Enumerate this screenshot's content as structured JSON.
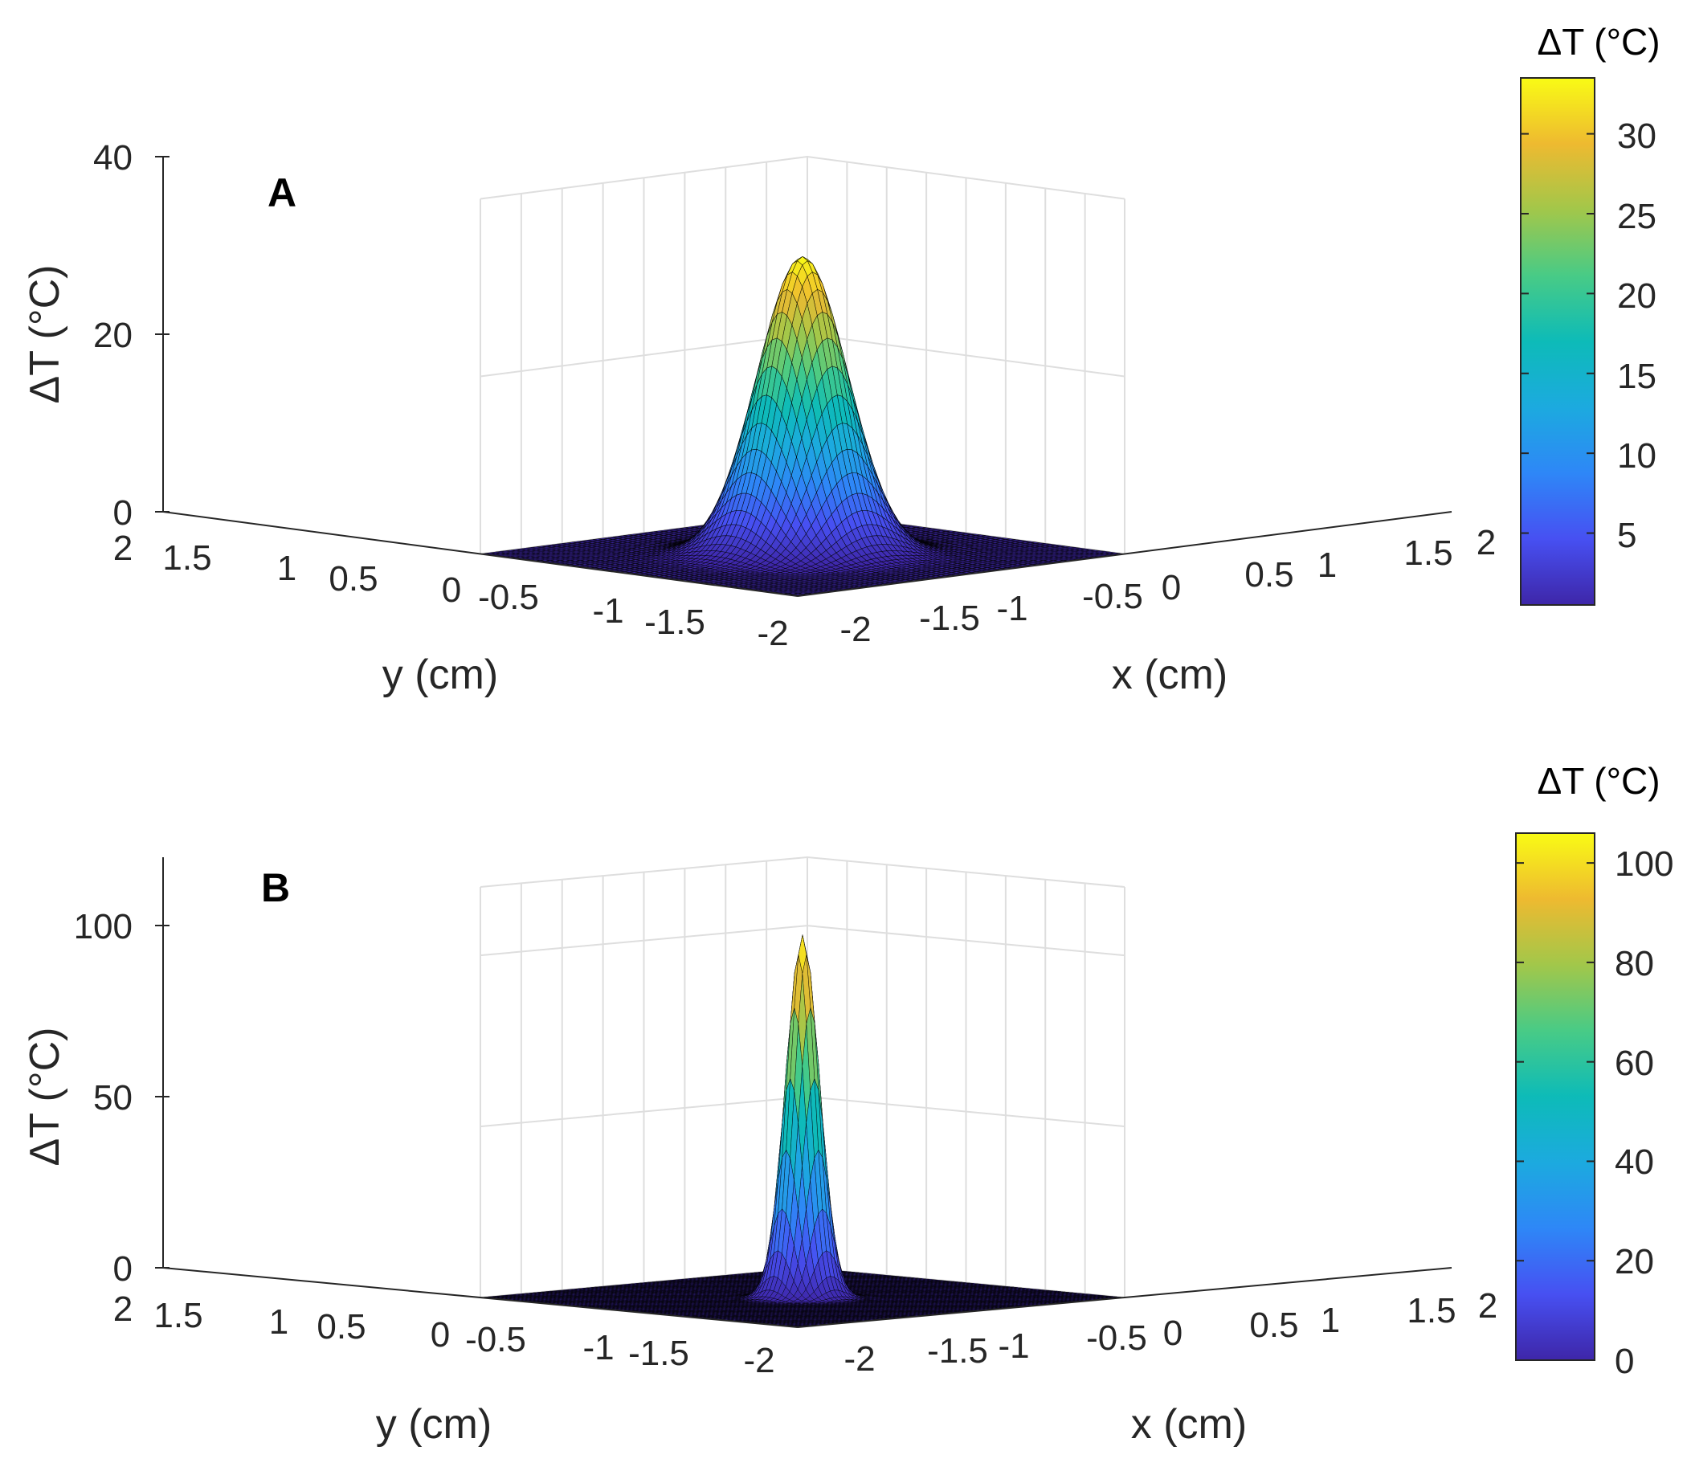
{
  "chart_data": [
    {
      "type": "surface",
      "panel_label": "A",
      "zlabel": "ΔT (°C)",
      "xlabel": "x (cm)",
      "ylabel": "y (cm)",
      "x_range": [
        -2,
        2
      ],
      "y_range": [
        -2,
        2
      ],
      "zlim": [
        0,
        40
      ],
      "z_ticks": [
        "0",
        "20",
        "40"
      ],
      "x_ticks": [
        "-2",
        "-1.5",
        "-1",
        "-0.5",
        "0",
        "0.5",
        "1",
        "1.5",
        "2"
      ],
      "y_ticks": [
        "2",
        "1.5",
        "1",
        "0.5",
        "0",
        "-0.5",
        "-1",
        "-1.5",
        "-2"
      ],
      "peak": 33.5,
      "peak_location": [
        0,
        0
      ],
      "gaussian_sigma_cm": 0.4,
      "grid": true,
      "colormap": "parula",
      "colorbar": {
        "title": "ΔT (°C)",
        "range": [
          0.5,
          33.5
        ],
        "ticks": [
          "5",
          "10",
          "15",
          "20",
          "25",
          "30"
        ],
        "placement": "right"
      }
    },
    {
      "type": "surface",
      "panel_label": "B",
      "zlabel": "ΔT (°C)",
      "xlabel": "x (cm)",
      "ylabel": "y (cm)",
      "x_range": [
        -2,
        2
      ],
      "y_range": [
        -2,
        2
      ],
      "zlim": [
        0,
        120
      ],
      "z_ticks": [
        "0",
        "50",
        "100"
      ],
      "x_ticks": [
        "-2",
        "-1.5",
        "-1",
        "-0.5",
        "0",
        "0.5",
        "1",
        "1.5",
        "2"
      ],
      "y_ticks": [
        "2",
        "1.5",
        "1",
        "0.5",
        "0",
        "-0.5",
        "-1",
        "-1.5",
        "-2"
      ],
      "peak": 106,
      "peak_location": [
        0,
        0
      ],
      "gaussian_sigma_cm": 0.15,
      "grid": true,
      "colormap": "parula",
      "colorbar": {
        "title": "ΔT (°C)",
        "range": [
          0,
          106
        ],
        "ticks": [
          "0",
          "20",
          "40",
          "60",
          "80",
          "100"
        ],
        "placement": "right"
      }
    }
  ],
  "colors": {
    "parula": [
      "#3E26A8",
      "#4750F2",
      "#2E87F7",
      "#1CAADF",
      "#0DBBB8",
      "#48CB86",
      "#A2C74A",
      "#EEBA30",
      "#F9FB15"
    ],
    "grid": "#DEDEDE",
    "axis": "#262626",
    "mesh_edge": "#000000"
  }
}
